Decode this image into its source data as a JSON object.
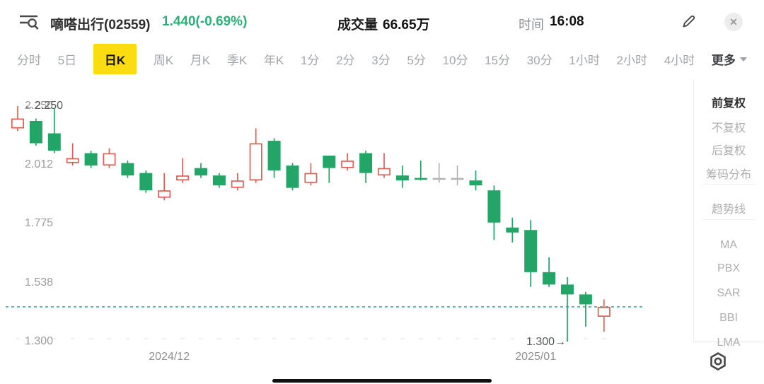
{
  "header": {
    "stock_name": "嘀嗒出行(02559)",
    "price": "1.440(-0.69%)",
    "volume_label": "成交量",
    "volume_value": "66.65万",
    "time_label": "时间",
    "time_value": "16:08",
    "close_glyph": "✕"
  },
  "tabs": {
    "items": [
      "分时",
      "5日",
      "日K",
      "周K",
      "月K",
      "季K",
      "年K",
      "1分",
      "2分",
      "3分",
      "5分",
      "10分",
      "15分",
      "30分",
      "1小时",
      "2小时",
      "4小时"
    ],
    "active": "日K",
    "more_label": "更多"
  },
  "menu": {
    "items": [
      {
        "label": "前复权",
        "active": true
      },
      {
        "label": "不复权",
        "active": false
      },
      {
        "label": "后复权",
        "active": false
      },
      {
        "label": "筹码分布",
        "active": false
      },
      {
        "label": "趋势线",
        "active": false
      },
      {
        "label": "MA",
        "active": false
      },
      {
        "label": "PBX",
        "active": false
      },
      {
        "label": "SAR",
        "active": false
      },
      {
        "label": "BBI",
        "active": false
      },
      {
        "label": "LMA",
        "active": false
      }
    ]
  },
  "chart_data": {
    "type": "candlestick",
    "title": "嘀嗒出行(02559) 日K 前复权",
    "y_ticks": [
      2.25,
      2.012,
      1.775,
      1.538,
      1.3
    ],
    "ylim": [
      1.3,
      2.25
    ],
    "x_labels": [
      {
        "label": "2024/12",
        "candle_index": 8
      },
      {
        "label": "2025/01",
        "candle_index": 28
      }
    ],
    "current_price": 1.44,
    "high_annotation": {
      "arrow": "←",
      "label": "2.250"
    },
    "low_annotation": {
      "label": "1.300",
      "arrow": "→"
    },
    "candles": [
      {
        "o": 2.16,
        "h": 2.25,
        "l": 2.15,
        "c": 2.2,
        "t": "up"
      },
      {
        "o": 2.19,
        "h": 2.2,
        "l": 2.09,
        "c": 2.1,
        "t": "down"
      },
      {
        "o": 2.14,
        "h": 2.24,
        "l": 2.06,
        "c": 2.07,
        "t": "down"
      },
      {
        "o": 2.02,
        "h": 2.1,
        "l": 2.01,
        "c": 2.04,
        "t": "up"
      },
      {
        "o": 2.06,
        "h": 2.07,
        "l": 2.0,
        "c": 2.01,
        "t": "down"
      },
      {
        "o": 2.01,
        "h": 2.08,
        "l": 2.0,
        "c": 2.06,
        "t": "up"
      },
      {
        "o": 2.02,
        "h": 2.03,
        "l": 1.96,
        "c": 1.97,
        "t": "down"
      },
      {
        "o": 1.98,
        "h": 1.99,
        "l": 1.9,
        "c": 1.91,
        "t": "down"
      },
      {
        "o": 1.88,
        "h": 1.98,
        "l": 1.87,
        "c": 1.91,
        "t": "up"
      },
      {
        "o": 1.95,
        "h": 2.04,
        "l": 1.94,
        "c": 1.97,
        "t": "up"
      },
      {
        "o": 2.0,
        "h": 2.02,
        "l": 1.96,
        "c": 1.97,
        "t": "down"
      },
      {
        "o": 1.97,
        "h": 1.98,
        "l": 1.92,
        "c": 1.93,
        "t": "down"
      },
      {
        "o": 1.92,
        "h": 1.98,
        "l": 1.91,
        "c": 1.95,
        "t": "up"
      },
      {
        "o": 1.95,
        "h": 2.16,
        "l": 1.94,
        "c": 2.1,
        "t": "up"
      },
      {
        "o": 2.11,
        "h": 2.12,
        "l": 1.96,
        "c": 1.99,
        "t": "down"
      },
      {
        "o": 2.01,
        "h": 2.02,
        "l": 1.91,
        "c": 1.92,
        "t": "down"
      },
      {
        "o": 1.94,
        "h": 2.02,
        "l": 1.93,
        "c": 1.98,
        "t": "up"
      },
      {
        "o": 2.05,
        "h": 2.05,
        "l": 1.94,
        "c": 2.0,
        "t": "down"
      },
      {
        "o": 2.0,
        "h": 2.06,
        "l": 1.99,
        "c": 2.03,
        "t": "up"
      },
      {
        "o": 2.06,
        "h": 2.07,
        "l": 1.94,
        "c": 1.98,
        "t": "down"
      },
      {
        "o": 1.97,
        "h": 2.06,
        "l": 1.96,
        "c": 2.0,
        "t": "up"
      },
      {
        "o": 1.97,
        "h": 2.01,
        "l": 1.92,
        "c": 1.95,
        "t": "down"
      },
      {
        "o": 1.96,
        "h": 2.03,
        "l": 1.95,
        "c": 1.96,
        "t": "down"
      },
      {
        "o": 1.96,
        "h": 2.02,
        "l": 1.94,
        "c": 1.96,
        "t": "flat"
      },
      {
        "o": 1.96,
        "h": 2.01,
        "l": 1.93,
        "c": 1.96,
        "t": "flat"
      },
      {
        "o": 1.95,
        "h": 1.99,
        "l": 1.91,
        "c": 1.93,
        "t": "down"
      },
      {
        "o": 1.91,
        "h": 1.93,
        "l": 1.71,
        "c": 1.78,
        "t": "down"
      },
      {
        "o": 1.76,
        "h": 1.8,
        "l": 1.7,
        "c": 1.74,
        "t": "down"
      },
      {
        "o": 1.75,
        "h": 1.79,
        "l": 1.52,
        "c": 1.58,
        "t": "down"
      },
      {
        "o": 1.58,
        "h": 1.64,
        "l": 1.52,
        "c": 1.53,
        "t": "down"
      },
      {
        "o": 1.53,
        "h": 1.56,
        "l": 1.3,
        "c": 1.49,
        "t": "down"
      },
      {
        "o": 1.49,
        "h": 1.5,
        "l": 1.36,
        "c": 1.45,
        "t": "down"
      },
      {
        "o": 1.4,
        "h": 1.47,
        "l": 1.34,
        "c": 1.44,
        "t": "up"
      }
    ]
  },
  "colors": {
    "up": "#df5f54",
    "down": "#23a567",
    "flat": "#b5b5b5",
    "price_line": "#2fab93",
    "accent_yellow": "#fbdc10",
    "price_text": "#2bb178"
  }
}
